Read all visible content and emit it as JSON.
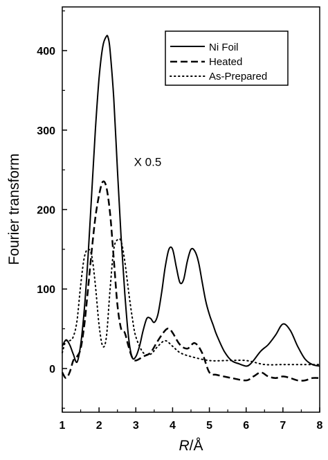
{
  "chart_data": {
    "type": "line",
    "xlabel_italic": "R",
    "xlabel_unit": "/Å",
    "ylabel": "Fourier transform",
    "xlim": [
      1,
      8
    ],
    "ylim": [
      -55,
      455
    ],
    "xticks": [
      1,
      2,
      3,
      4,
      5,
      6,
      7,
      8
    ],
    "yticks": [
      0,
      100,
      200,
      300,
      400
    ],
    "grid": false,
    "legend_position": "top-right",
    "annotations": [
      {
        "text": "X 0.5",
        "x": 2.95,
        "y": 255
      }
    ],
    "series": [
      {
        "name": "Ni Foil",
        "style": "solid",
        "x": [
          1.0,
          1.1,
          1.2,
          1.3,
          1.4,
          1.5,
          1.6,
          1.7,
          1.8,
          1.9,
          2.0,
          2.1,
          2.2,
          2.25,
          2.3,
          2.4,
          2.5,
          2.6,
          2.7,
          2.8,
          2.9,
          3.0,
          3.1,
          3.2,
          3.3,
          3.4,
          3.5,
          3.6,
          3.7,
          3.8,
          3.9,
          4.0,
          4.1,
          4.2,
          4.3,
          4.4,
          4.5,
          4.6,
          4.7,
          4.8,
          4.9,
          5.0,
          5.1,
          5.2,
          5.4,
          5.6,
          5.8,
          6.0,
          6.1,
          6.2,
          6.4,
          6.6,
          6.8,
          7.0,
          7.2,
          7.4,
          7.6,
          7.8,
          8.0
        ],
        "y": [
          28,
          36,
          30,
          18,
          8,
          30,
          75,
          140,
          220,
          300,
          365,
          405,
          418,
          416,
          400,
          340,
          250,
          165,
          95,
          40,
          14,
          15,
          28,
          48,
          63,
          63,
          58,
          68,
          95,
          128,
          150,
          150,
          128,
          108,
          112,
          135,
          150,
          148,
          135,
          110,
          85,
          68,
          55,
          42,
          22,
          10,
          6,
          3,
          5,
          10,
          22,
          30,
          42,
          56,
          48,
          28,
          12,
          5,
          3
        ]
      },
      {
        "name": "Heated",
        "style": "dashed",
        "x": [
          1.0,
          1.1,
          1.2,
          1.3,
          1.4,
          1.5,
          1.6,
          1.7,
          1.8,
          1.9,
          2.0,
          2.1,
          2.2,
          2.3,
          2.4,
          2.5,
          2.6,
          2.7,
          2.8,
          2.9,
          3.0,
          3.2,
          3.4,
          3.6,
          3.8,
          3.9,
          4.0,
          4.2,
          4.4,
          4.6,
          4.8,
          5.0,
          5.2,
          5.6,
          6.0,
          6.2,
          6.4,
          6.6,
          6.8,
          7.0,
          7.2,
          7.4,
          7.6,
          7.8,
          8.0
        ],
        "y": [
          -5,
          -12,
          -5,
          10,
          15,
          25,
          55,
          100,
          148,
          190,
          218,
          235,
          228,
          195,
          138,
          80,
          50,
          45,
          28,
          14,
          10,
          15,
          20,
          35,
          48,
          50,
          45,
          30,
          25,
          32,
          20,
          -5,
          -8,
          -12,
          -15,
          -10,
          -5,
          -10,
          -12,
          -10,
          -12,
          -15,
          -15,
          -12,
          -12
        ]
      },
      {
        "name": "As-Prepared",
        "style": "dotted",
        "x": [
          1.0,
          1.1,
          1.2,
          1.3,
          1.4,
          1.5,
          1.6,
          1.7,
          1.8,
          1.9,
          2.0,
          2.1,
          2.2,
          2.3,
          2.4,
          2.5,
          2.6,
          2.7,
          2.8,
          2.9,
          3.0,
          3.2,
          3.4,
          3.6,
          3.8,
          4.0,
          4.2,
          4.5,
          5.0,
          5.5,
          6.0,
          6.5,
          7.0,
          7.5,
          8.0
        ],
        "y": [
          20,
          35,
          35,
          40,
          60,
          105,
          140,
          150,
          142,
          105,
          55,
          28,
          40,
          100,
          150,
          162,
          160,
          135,
          98,
          65,
          40,
          20,
          18,
          28,
          35,
          28,
          20,
          15,
          10,
          10,
          10,
          5,
          5,
          5,
          5
        ]
      }
    ]
  }
}
